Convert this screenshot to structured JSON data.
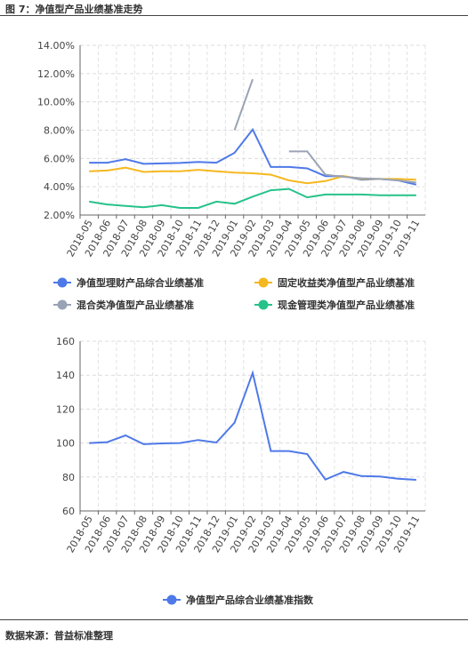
{
  "figure_title": "图 7：净值型产品业绩基准走势",
  "source_note": "数据来源：普益标准整理",
  "chart_data": [
    {
      "type": "line",
      "x": [
        "2018-05",
        "2018-06",
        "2018-07",
        "2018-08",
        "2018-09",
        "2018-10",
        "2018-11",
        "2018-12",
        "2019-01",
        "2019-02",
        "2019-03",
        "2019-04",
        "2019-05",
        "2019-06",
        "2019-07",
        "2019-08",
        "2019-09",
        "2019-10",
        "2019-11"
      ],
      "ylim": [
        2,
        14
      ],
      "yticks": [
        2,
        4,
        6,
        8,
        10,
        12,
        14
      ],
      "ytick_labels": [
        "2.00%",
        "4.00%",
        "6.00%",
        "8.00%",
        "10.00%",
        "12.00%",
        "14.00%"
      ],
      "grid": true,
      "legend_position": "bottom",
      "series": [
        {
          "name": "净值型理财产品综合业绩基准",
          "color": "#4e79e8",
          "values": [
            5.7,
            5.7,
            5.95,
            5.62,
            5.65,
            5.68,
            5.75,
            5.7,
            6.4,
            8.05,
            5.4,
            5.4,
            5.3,
            4.75,
            4.75,
            4.5,
            4.55,
            4.45,
            4.15
          ]
        },
        {
          "name": "固定收益类净值型产品业绩基准",
          "color": "#f5b820",
          "values": [
            5.1,
            5.15,
            5.35,
            5.05,
            5.1,
            5.1,
            5.2,
            5.1,
            5.0,
            4.95,
            4.85,
            4.45,
            4.25,
            4.4,
            4.75,
            4.55,
            4.55,
            4.55,
            4.5
          ]
        },
        {
          "name": "混合类净值型产品业绩基准",
          "color": "#9aa3b5",
          "values": [
            null,
            null,
            null,
            null,
            null,
            null,
            null,
            null,
            8.0,
            11.6,
            null,
            6.5,
            6.5,
            4.85,
            4.7,
            4.6,
            4.55,
            4.45,
            4.3
          ]
        },
        {
          "name": "现金管理类净值型产品业绩基准",
          "color": "#26c28a",
          "values": [
            2.95,
            2.75,
            2.65,
            2.55,
            2.7,
            2.5,
            2.5,
            2.95,
            2.8,
            3.3,
            3.75,
            3.85,
            3.25,
            3.45,
            3.45,
            3.45,
            3.4,
            3.4,
            3.4
          ]
        }
      ]
    },
    {
      "type": "line",
      "x": [
        "2018-05",
        "2018-06",
        "2018-07",
        "2018-08",
        "2018-09",
        "2018-10",
        "2018-11",
        "2018-12",
        "2019-01",
        "2019-02",
        "2019-03",
        "2019-04",
        "2019-05",
        "2019-06",
        "2019-07",
        "2019-08",
        "2019-09",
        "2019-10",
        "2019-11"
      ],
      "ylim": [
        60,
        160
      ],
      "yticks": [
        60,
        80,
        100,
        120,
        140,
        160
      ],
      "ytick_labels": [
        "60",
        "80",
        "100",
        "120",
        "140",
        "160"
      ],
      "grid": true,
      "legend_position": "bottom",
      "series": [
        {
          "name": "净值型产品综合业绩基准指数",
          "color": "#4e79e8",
          "values": [
            100,
            100.5,
            104.5,
            99.3,
            99.8,
            100,
            101.8,
            100.3,
            112,
            141.3,
            95.3,
            95.3,
            93.5,
            78.5,
            83,
            80.5,
            80.3,
            79,
            78.3
          ]
        }
      ]
    }
  ]
}
